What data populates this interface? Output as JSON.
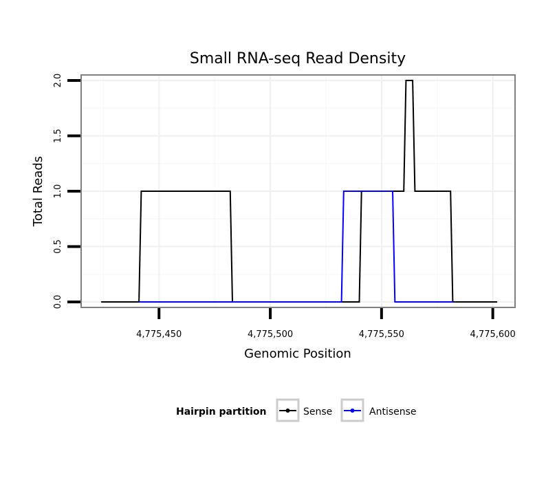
{
  "chart_data": {
    "type": "line",
    "title": "Small RNA-seq Read Density",
    "xlabel": "Genomic Position",
    "ylabel": "Total Reads",
    "xlim": [
      4775415,
      4775610
    ],
    "ylim": [
      -0.05,
      2.05
    ],
    "x_ticks": [
      4775450,
      4775500,
      4775550,
      4775600
    ],
    "x_tick_labels": [
      "4,775,450",
      "4,775,500",
      "4,775,550",
      "4,775,600"
    ],
    "y_ticks": [
      0.0,
      0.5,
      1.0,
      1.5,
      2.0
    ],
    "y_tick_labels": [
      "0.0",
      "0.5",
      "1.0",
      "1.5",
      "2.0"
    ],
    "grid": true,
    "legend_position": "bottom",
    "legend_title": "Hairpin partition",
    "series": [
      {
        "name": "Sense",
        "color": "#000000",
        "x": [
          4775424,
          4775441,
          4775442,
          4775482,
          4775483,
          4775540,
          4775541,
          4775560,
          4775561,
          4775564,
          4775565,
          4775581,
          4775582,
          4775602
        ],
        "values": [
          0,
          0,
          1,
          1,
          0,
          0,
          1,
          1,
          2,
          2,
          1,
          1,
          0,
          0
        ]
      },
      {
        "name": "Antisense",
        "color": "#0000ff",
        "x": [
          4775441,
          4775532,
          4775533,
          4775555,
          4775556,
          4775582
        ],
        "values": [
          0,
          0,
          1,
          1,
          0,
          0
        ]
      }
    ]
  }
}
